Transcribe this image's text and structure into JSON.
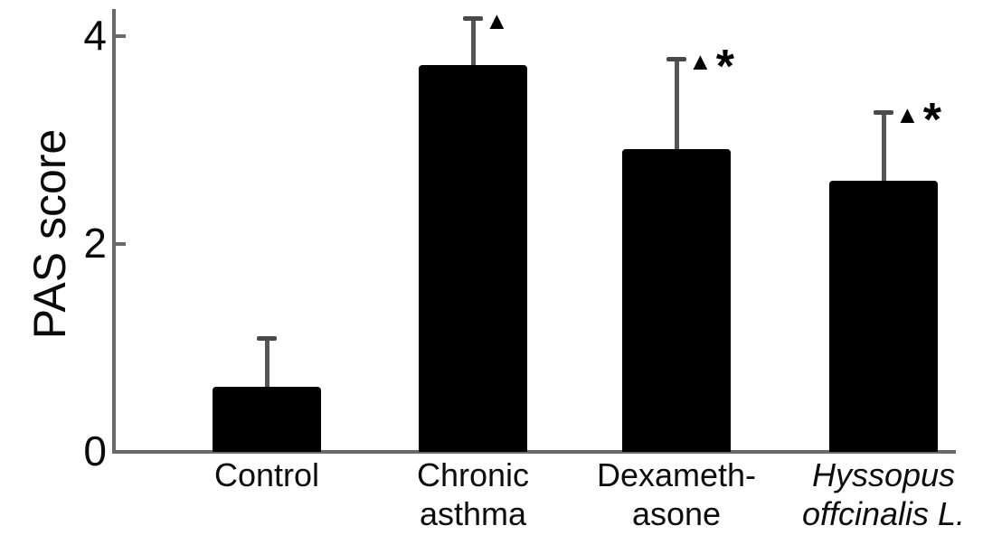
{
  "chart_data": {
    "type": "bar",
    "title": "",
    "xlabel": "",
    "ylabel": "PAS score",
    "categories": [
      "Control",
      "Chronic asthma",
      "Dexamethasone",
      "Hyssopus offcinalis L."
    ],
    "category_lines": [
      [
        "Control"
      ],
      [
        "Chronic",
        "asthma"
      ],
      [
        "Dexameth-",
        "asone"
      ],
      [
        "Hyssopus",
        "offcinalis L."
      ]
    ],
    "italic_categories": [
      false,
      false,
      false,
      true
    ],
    "values": [
      0.63,
      3.72,
      2.91,
      2.61
    ],
    "errors_upper": [
      0.48,
      0.47,
      0.89,
      0.68
    ],
    "annotations": [
      "",
      "▲",
      "▲*",
      "▲*"
    ],
    "yticks": [
      0,
      2,
      4
    ],
    "ylim": [
      0,
      4.3
    ],
    "grid": false,
    "legend": null,
    "bar_color": "#000000",
    "axis_color": "#696969",
    "error_bar_color": "#555555",
    "text_color": "#0a0a0a"
  }
}
